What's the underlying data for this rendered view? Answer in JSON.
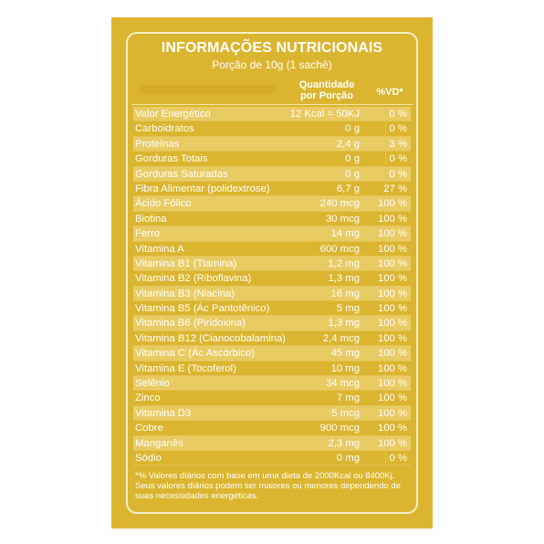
{
  "title": "INFORMAÇÕES NUTRICIONAIS",
  "subtitle": "Porção de 10g (1 sachê)",
  "header": {
    "qty": "Quantidade por Porção",
    "vd": "%VD*"
  },
  "rows": [
    {
      "name": "Valor Energético",
      "qty": "12 Kcal = 50KJ",
      "vd": "0 %"
    },
    {
      "name": "Carboidratos",
      "qty": "0 g",
      "vd": "0 %"
    },
    {
      "name": "Proteínas",
      "qty": "2,4 g",
      "vd": "3 %"
    },
    {
      "name": "Gorduras Totais",
      "qty": "0 g",
      "vd": "0 %"
    },
    {
      "name": "Gorduras Saturadas",
      "qty": "0 g",
      "vd": "0 %"
    },
    {
      "name": "Fibra Alimentar (polidextrose)",
      "qty": "6,7 g",
      "vd": "27 %"
    },
    {
      "name": "Ácido Fólico",
      "qty": "240 mcg",
      "vd": "100 %"
    },
    {
      "name": "Biotina",
      "qty": "30 mcg",
      "vd": "100 %"
    },
    {
      "name": "Ferro",
      "qty": "14 mg",
      "vd": "100 %"
    },
    {
      "name": "Vitamina A",
      "qty": "600 mcg",
      "vd": "100 %"
    },
    {
      "name": "Vitamina B1 (Tiamina)",
      "qty": "1,2 mg",
      "vd": "100 %"
    },
    {
      "name": "Vitamina B2 (Riboflavina)",
      "qty": "1,3 mg",
      "vd": "100 %"
    },
    {
      "name": "Vitamina B3 (Niacina)",
      "qty": "16 mg",
      "vd": "100 %"
    },
    {
      "name": "Vitamina B5 (Ác Pantotênico)",
      "qty": "5 mg",
      "vd": "100 %"
    },
    {
      "name": "Vitamina B6 (Piridoxina)",
      "qty": "1,3 mg",
      "vd": "100 %"
    },
    {
      "name": "Vitamina B12 (Cianocobalamina)",
      "qty": "2,4 mcg",
      "vd": "100 %"
    },
    {
      "name": "Vitamina C (Ác Ascórbico)",
      "qty": "45 mg",
      "vd": "100 %"
    },
    {
      "name": "Vitamina E (Tocoferol)",
      "qty": "10 mg",
      "vd": "100 %"
    },
    {
      "name": "Selênio",
      "qty": "34 mcg",
      "vd": "100 %"
    },
    {
      "name": "Zinco",
      "qty": "7 mg",
      "vd": "100 %"
    },
    {
      "name": "Vitamina D3",
      "qty": "5 mcg",
      "vd": "100 %"
    },
    {
      "name": "Cobre",
      "qty": "900 mcg",
      "vd": "100 %"
    },
    {
      "name": "Manganês",
      "qty": "2,3 mg",
      "vd": "100 %"
    },
    {
      "name": "Sódio",
      "qty": "0 mg",
      "vd": "0 %"
    }
  ],
  "footnote": "*% Valores diários com base em uma dieta de 2000Kcal ou 8400Kj. Seus valores diários podem ser maiores ou menores dependendo de suas necessidades energéticas.",
  "colors": {
    "panel": "#dbb52f",
    "stripe": "#e9cb63",
    "text": "#ffffff"
  }
}
